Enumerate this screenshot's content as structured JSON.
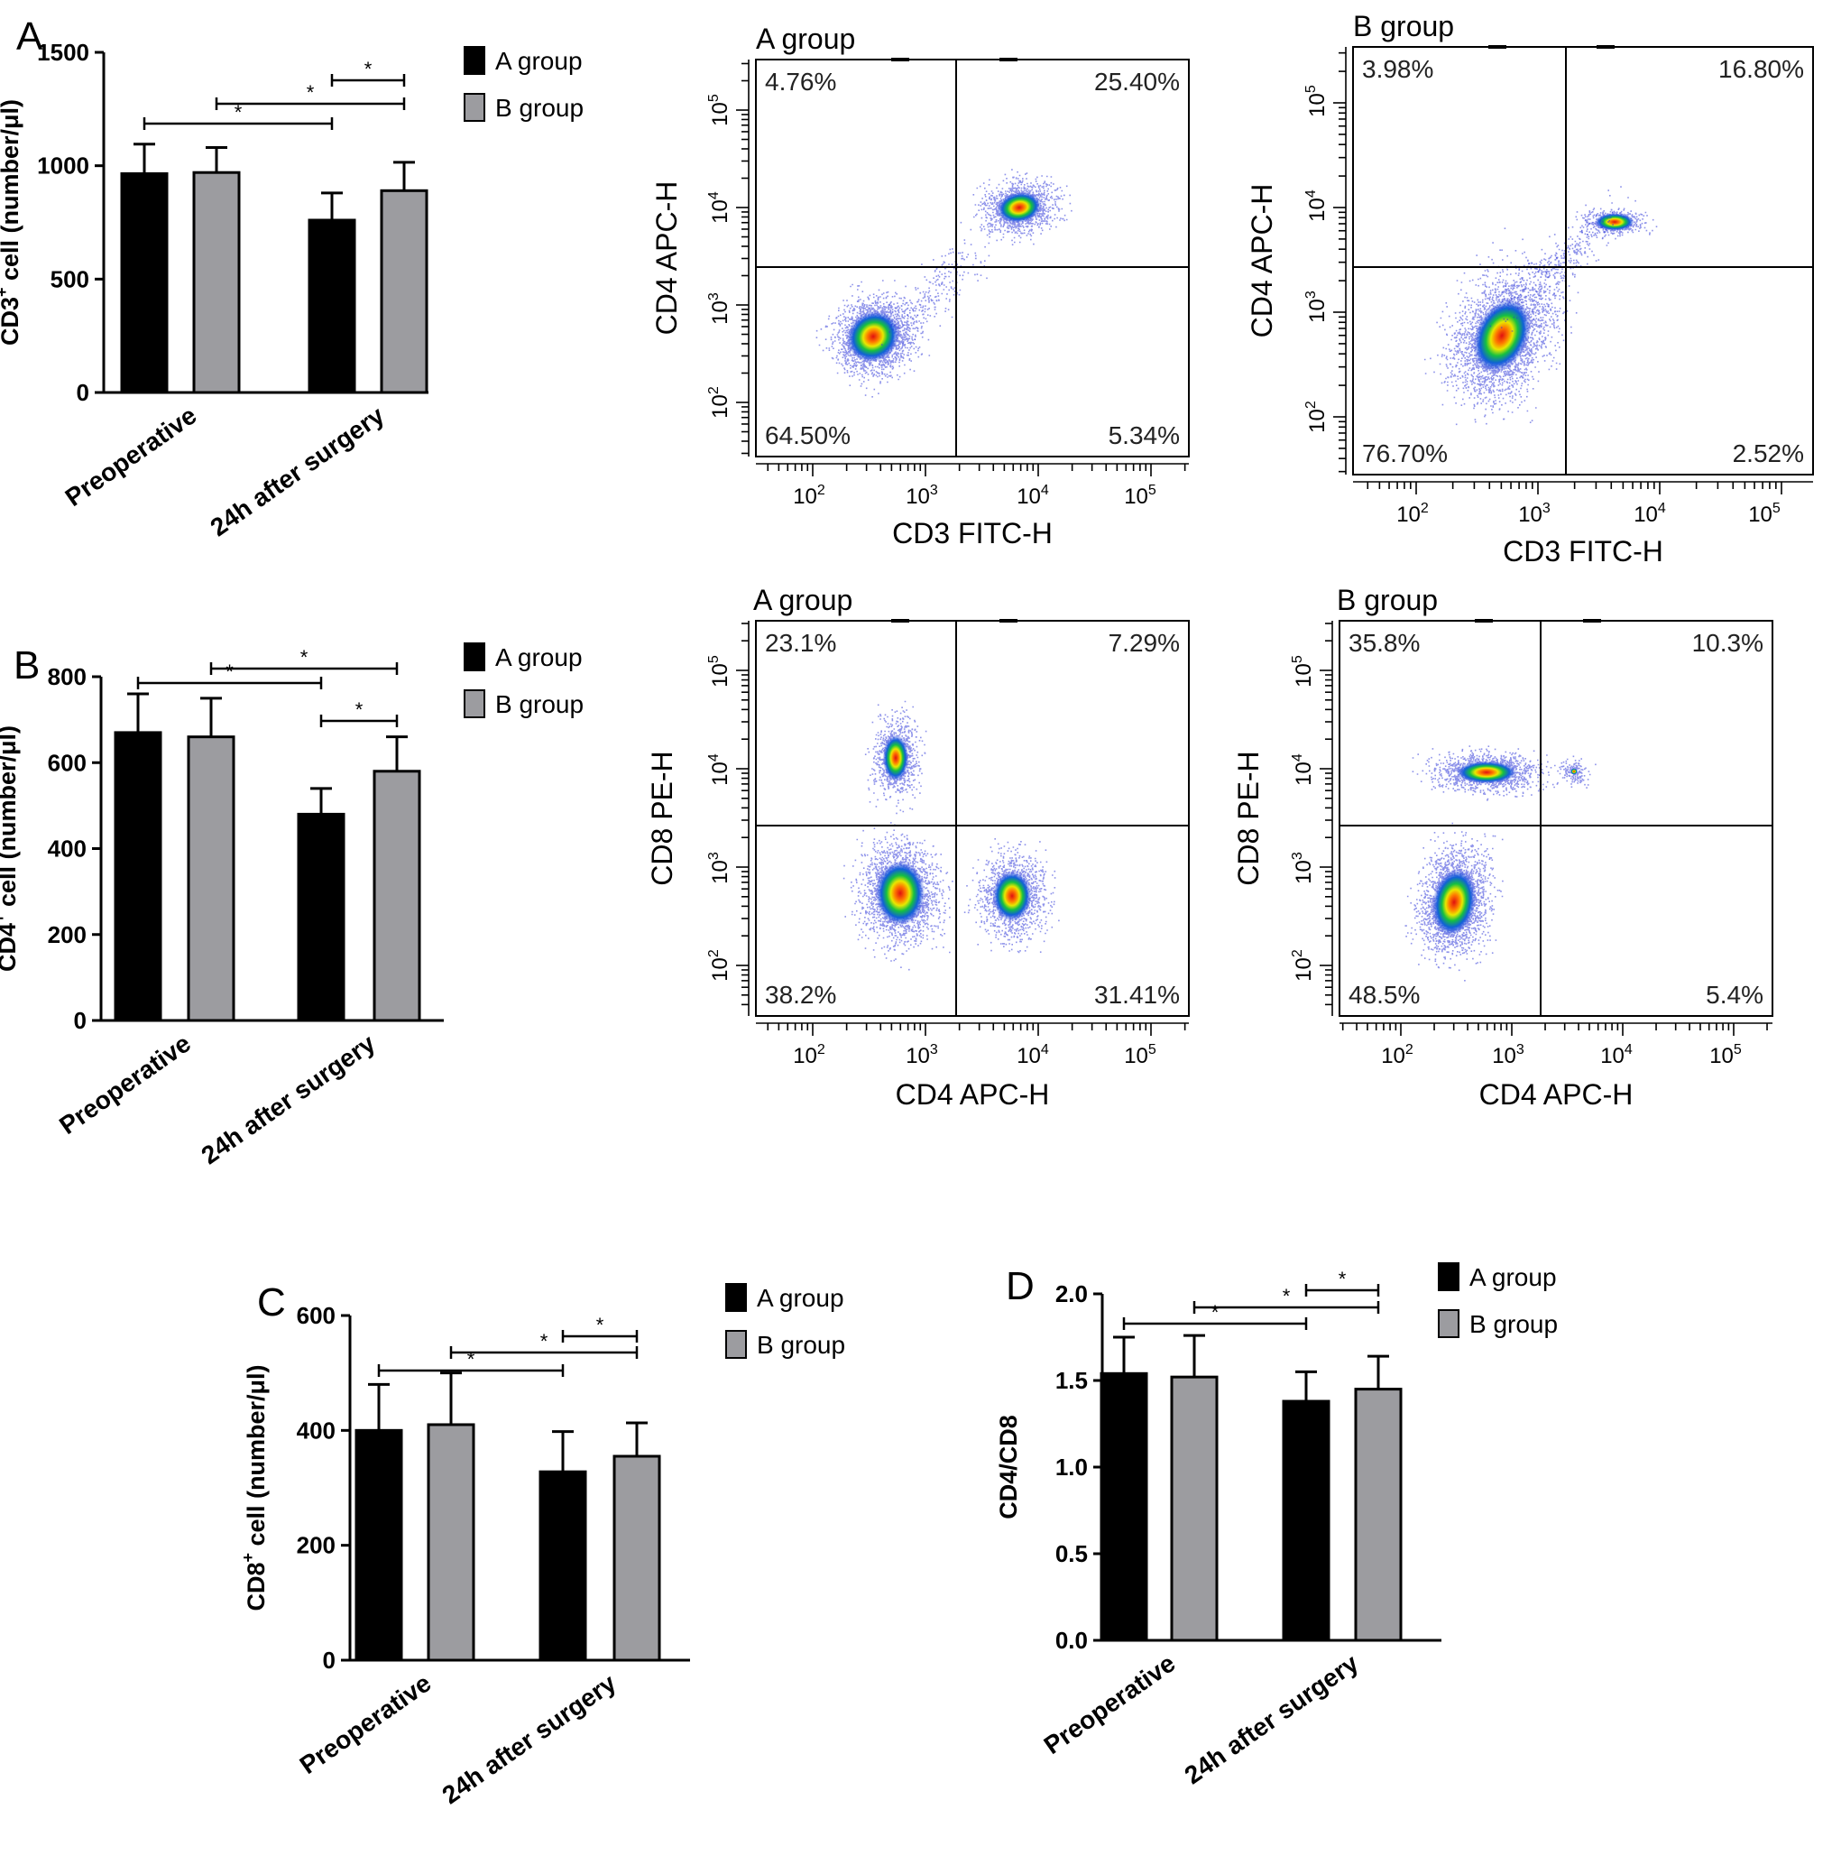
{
  "colors": {
    "group_a": "#000000",
    "group_b": "#9c9ca0",
    "axis": "#000000"
  },
  "bar_panels": [
    {
      "letter": "A",
      "ylabel_main": "CD3",
      "ylabel_sup": "+",
      "ylabel_rest": " cell (number/μl)",
      "legend": [
        "A group",
        "B group"
      ],
      "categories": [
        "Preoperative",
        "24h after surgery"
      ],
      "ylim": [
        0,
        1500
      ],
      "ticks": [
        "0",
        "500",
        "1000",
        "1500"
      ],
      "sig_marks": [
        "*",
        "*",
        "*"
      ]
    },
    {
      "letter": "B",
      "ylabel_main": "CD4",
      "ylabel_sup": "+",
      "ylabel_rest": " cell (number/μl)",
      "legend": [
        "A group",
        "B group"
      ],
      "categories": [
        "Preoperative",
        "24h after surgery"
      ],
      "ylim": [
        0,
        800
      ],
      "ticks": [
        "0",
        "200",
        "400",
        "600",
        "800"
      ],
      "sig_marks": [
        "*",
        "*",
        "*"
      ]
    },
    {
      "letter": "C",
      "ylabel_main": "CD8",
      "ylabel_sup": "+",
      "ylabel_rest": " cell (number/μl)",
      "legend": [
        "A group",
        "B group"
      ],
      "categories": [
        "Preoperative",
        "24h after surgery"
      ],
      "ylim": [
        0,
        600
      ],
      "ticks": [
        "0",
        "200",
        "400",
        "600"
      ],
      "sig_marks": [
        "*",
        "*",
        "*"
      ]
    },
    {
      "letter": "D",
      "ylabel_main": "CD4/CD8",
      "ylabel_sup": "",
      "ylabel_rest": "",
      "legend": [
        "A group",
        "B group"
      ],
      "categories": [
        "Preoperative",
        "24h after surgery"
      ],
      "ylim": [
        0,
        2
      ],
      "ticks": [
        "0.0",
        "0.5",
        "1.0",
        "1.5",
        "2.0"
      ],
      "sig_marks": [
        "*",
        "*",
        "*"
      ]
    }
  ],
  "flow_panels": [
    {
      "title": "A group",
      "ylabel": "CD4 APC-H",
      "xlabel": "CD3 FITC-H",
      "q_ul": "4.76%",
      "q_ur": "25.40%",
      "q_ll": "64.50%",
      "q_lr": "5.34%"
    },
    {
      "title": "B group",
      "ylabel": "CD4 APC-H",
      "xlabel": "CD3 FITC-H",
      "q_ul": "3.98%",
      "q_ur": "16.80%",
      "q_ll": "76.70%",
      "q_lr": "2.52%"
    },
    {
      "title": "A group",
      "ylabel": "CD8 PE-H",
      "xlabel": "CD4 APC-H",
      "q_ul": "23.1%",
      "q_ur": "7.29%",
      "q_ll": "38.2%",
      "q_lr": "31.41%"
    },
    {
      "title": "B group",
      "ylabel": "CD8 PE-H",
      "xlabel": "CD4 APC-H",
      "q_ul": "35.8%",
      "q_ur": "10.3%",
      "q_ll": "48.5%",
      "q_lr": "5.4%"
    }
  ],
  "flow_tick_labels": [
    "10",
    "10",
    "10",
    "10"
  ],
  "flow_tick_exps": [
    "2",
    "3",
    "4",
    "5"
  ],
  "chart_data": [
    {
      "type": "bar",
      "panel": "A",
      "categories": [
        "Preoperative",
        "24h after surgery"
      ],
      "series": [
        {
          "name": "A group",
          "values": [
            965,
            760
          ],
          "errors": [
            130,
            120
          ]
        },
        {
          "name": "B group",
          "values": [
            970,
            890
          ],
          "errors": [
            110,
            125
          ]
        }
      ],
      "ylabel": "CD3+ cell (number/μl)",
      "ylim": [
        0,
        1500
      ]
    },
    {
      "type": "bar",
      "panel": "B",
      "categories": [
        "Preoperative",
        "24h after surgery"
      ],
      "series": [
        {
          "name": "A group",
          "values": [
            670,
            480
          ],
          "errors": [
            90,
            60
          ]
        },
        {
          "name": "B group",
          "values": [
            660,
            580
          ],
          "errors": [
            90,
            80
          ]
        }
      ],
      "ylabel": "CD4+ cell (number/μl)",
      "ylim": [
        0,
        800
      ]
    },
    {
      "type": "bar",
      "panel": "C",
      "categories": [
        "Preoperative",
        "24h after surgery"
      ],
      "series": [
        {
          "name": "A group",
          "values": [
            400,
            328
          ],
          "errors": [
            80,
            70
          ]
        },
        {
          "name": "B group",
          "values": [
            410,
            355
          ],
          "errors": [
            90,
            58
          ]
        }
      ],
      "ylabel": "CD8+ cell (number/μl)",
      "ylim": [
        0,
        600
      ]
    },
    {
      "type": "bar",
      "panel": "D",
      "categories": [
        "Preoperative",
        "24h after surgery"
      ],
      "series": [
        {
          "name": "A group",
          "values": [
            1.54,
            1.38
          ],
          "errors": [
            0.21,
            0.17
          ]
        },
        {
          "name": "B group",
          "values": [
            1.52,
            1.45
          ],
          "errors": [
            0.24,
            0.19
          ]
        }
      ],
      "ylabel": "CD4/CD8",
      "ylim": [
        0,
        2.0
      ]
    },
    {
      "type": "scatter",
      "panel": "flow-1",
      "title": "A group",
      "xlabel": "CD3 FITC-H",
      "ylabel": "CD4 APC-H",
      "quadrants": {
        "upper_left": "4.76%",
        "upper_right": "25.40%",
        "lower_left": "64.50%",
        "lower_right": "5.34%"
      }
    },
    {
      "type": "scatter",
      "panel": "flow-2",
      "title": "B group",
      "xlabel": "CD3 FITC-H",
      "ylabel": "CD4 APC-H",
      "quadrants": {
        "upper_left": "3.98%",
        "upper_right": "16.80%",
        "lower_left": "76.70%",
        "lower_right": "2.52%"
      }
    },
    {
      "type": "scatter",
      "panel": "flow-3",
      "title": "A group",
      "xlabel": "CD4 APC-H",
      "ylabel": "CD8 PE-H",
      "quadrants": {
        "upper_left": "23.1%",
        "upper_right": "7.29%",
        "lower_left": "38.2%",
        "lower_right": "31.41%"
      }
    },
    {
      "type": "scatter",
      "panel": "flow-4",
      "title": "B group",
      "xlabel": "CD4 APC-H",
      "ylabel": "CD8 PE-H",
      "quadrants": {
        "upper_left": "35.8%",
        "upper_right": "10.3%",
        "lower_left": "48.5%",
        "lower_right": "5.4%"
      }
    }
  ]
}
